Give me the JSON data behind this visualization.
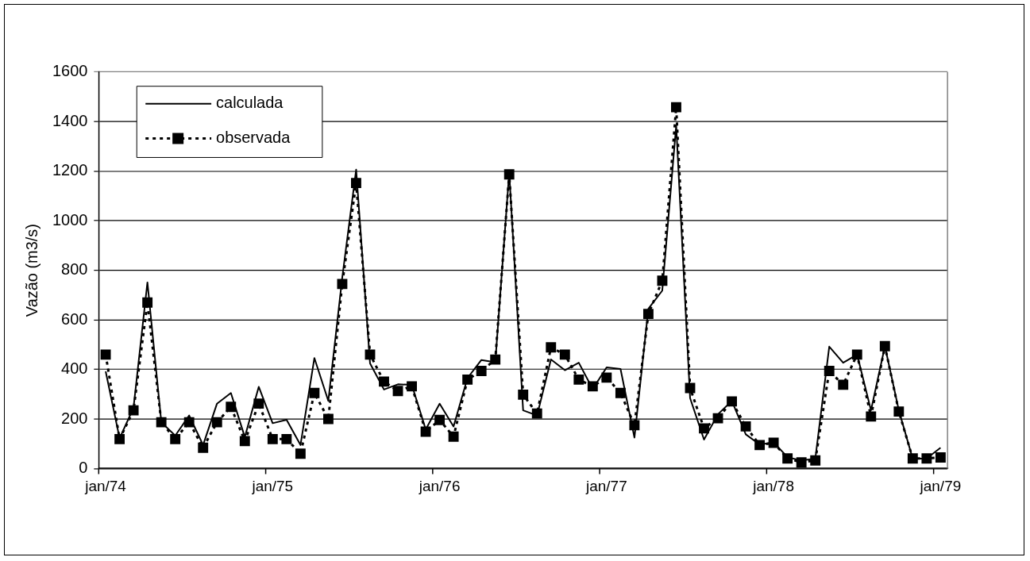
{
  "chart_data": {
    "type": "line",
    "ylabel": "Vazão (m3/s)",
    "categories": [
      "jan/74",
      null,
      null,
      null,
      null,
      null,
      null,
      null,
      null,
      null,
      null,
      null,
      "jan/75",
      null,
      null,
      null,
      null,
      null,
      null,
      null,
      null,
      null,
      null,
      null,
      "jan/76",
      null,
      null,
      null,
      null,
      null,
      null,
      null,
      null,
      null,
      null,
      null,
      "jan/77",
      null,
      null,
      null,
      null,
      null,
      null,
      null,
      null,
      null,
      null,
      null,
      "jan/78",
      null,
      null,
      null,
      null,
      null,
      null,
      null,
      null,
      null,
      null,
      null,
      "jan/79"
    ],
    "series": [
      {
        "name": "calculada",
        "color": "#000000",
        "line_style": "solid",
        "marker": "none",
        "values": [
          392,
          122,
          245,
          751,
          187,
          133,
          214,
          95,
          262,
          305,
          127,
          330,
          183,
          197,
          95,
          446,
          273,
          770,
          1206,
          424,
          319,
          340,
          338,
          158,
          262,
          170,
          365,
          438,
          429,
          1195,
          235,
          214,
          440,
          397,
          427,
          321,
          408,
          402,
          125,
          645,
          718,
          1384,
          284,
          117,
          219,
          273,
          138,
          97,
          106,
          46,
          32,
          41,
          492,
          427,
          460,
          235,
          494,
          235,
          39,
          41,
          84
        ]
      },
      {
        "name": "observada",
        "color": "#000000",
        "line_style": "dotted",
        "marker": "square",
        "values": [
          460,
          119,
          235,
          670,
          187,
          119,
          187,
          84,
          187,
          249,
          111,
          262,
          119,
          119,
          60,
          305,
          200,
          745,
          1152,
          460,
          351,
          313,
          332,
          149,
          196,
          129,
          359,
          394,
          440,
          1187,
          298,
          222,
          489,
          460,
          359,
          332,
          367,
          305,
          175,
          624,
          758,
          1458,
          325,
          162,
          203,
          271,
          170,
          95,
          104,
          41,
          25,
          33,
          394,
          338,
          460,
          210,
          494,
          230,
          41,
          41,
          45
        ]
      }
    ],
    "ylim": [
      0,
      1600
    ],
    "yticks": [
      0,
      200,
      400,
      600,
      800,
      1000,
      1200,
      1400,
      1600
    ],
    "grid": "y",
    "legend": "top left"
  }
}
